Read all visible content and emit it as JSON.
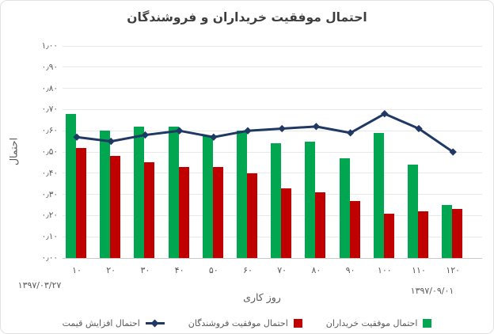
{
  "title": "احتمال موفقیت خریداران و فروشندگان",
  "y_axis": {
    "title": "احتمال",
    "tick_labels": [
      "۰٫۰۰",
      "۰٫۱۰",
      "۰٫۲۰",
      "۰٫۳۰",
      "۰٫۴۰",
      "۰٫۵۰",
      "۰٫۶۰",
      "۰٫۷۰",
      "۰٫۸۰",
      "۰٫۹۰",
      "۱٫۰۰"
    ]
  },
  "x_axis": {
    "title": "روز کاری",
    "tick_labels": [
      "۱۰",
      "۲۰",
      "۳۰",
      "۴۰",
      "۵۰",
      "۶۰",
      "۷۰",
      "۸۰",
      "۹۰",
      "۱۰۰",
      "۱۱۰",
      "۱۲۰"
    ],
    "start_date": "۱۳۹۷/۰۳/۲۷",
    "end_date": "۱۳۹۷/۰۹/۰۱"
  },
  "legend": {
    "items": [
      {
        "label": "احتمال موفقیت خریداران",
        "marker": "square",
        "color": "#00A650"
      },
      {
        "label": "احتمال موفقیت فروشندگان",
        "marker": "square",
        "color": "#C00000"
      },
      {
        "label": "احتمال افزایش قیمت",
        "marker": "line-diamond",
        "color": "#1F3864"
      }
    ]
  },
  "colors": {
    "buyers_green": "#00A650",
    "sellers_red": "#C00000",
    "price_line_navy": "#1F3864",
    "grid": "#E8E8E8",
    "axis_text": "#595959",
    "title_text": "#3D3D3D"
  },
  "chart_data": {
    "type": "combo",
    "categories": [
      10,
      20,
      30,
      40,
      50,
      60,
      70,
      80,
      90,
      100,
      110,
      120
    ],
    "category_labels": [
      "۱۰",
      "۲۰",
      "۳۰",
      "۴۰",
      "۵۰",
      "۶۰",
      "۷۰",
      "۸۰",
      "۹۰",
      "۱۰۰",
      "۱۱۰",
      "۱۲۰"
    ],
    "title": "احتمال موفقیت خریداران و فروشندگان",
    "xlabel": "روز کاری",
    "ylabel": "احتمال",
    "ylim": [
      0,
      1
    ],
    "ytick_step": 0.1,
    "grid": true,
    "legend_position": "bottom",
    "series": [
      {
        "name": "احتمال موفقیت خریداران",
        "type": "bar",
        "color": "#00A650",
        "values": [
          0.68,
          0.6,
          0.62,
          0.62,
          0.58,
          0.6,
          0.54,
          0.55,
          0.47,
          0.59,
          0.44,
          0.25
        ]
      },
      {
        "name": "احتمال موفقیت فروشندگان",
        "type": "bar",
        "color": "#C00000",
        "values": [
          0.52,
          0.48,
          0.45,
          0.43,
          0.43,
          0.4,
          0.33,
          0.31,
          0.27,
          0.21,
          0.22,
          0.23
        ]
      },
      {
        "name": "احتمال افزایش قیمت",
        "type": "line",
        "color": "#1F3864",
        "values": [
          0.57,
          0.55,
          0.58,
          0.6,
          0.57,
          0.6,
          0.61,
          0.62,
          0.59,
          0.68,
          0.61,
          0.5
        ]
      }
    ]
  }
}
